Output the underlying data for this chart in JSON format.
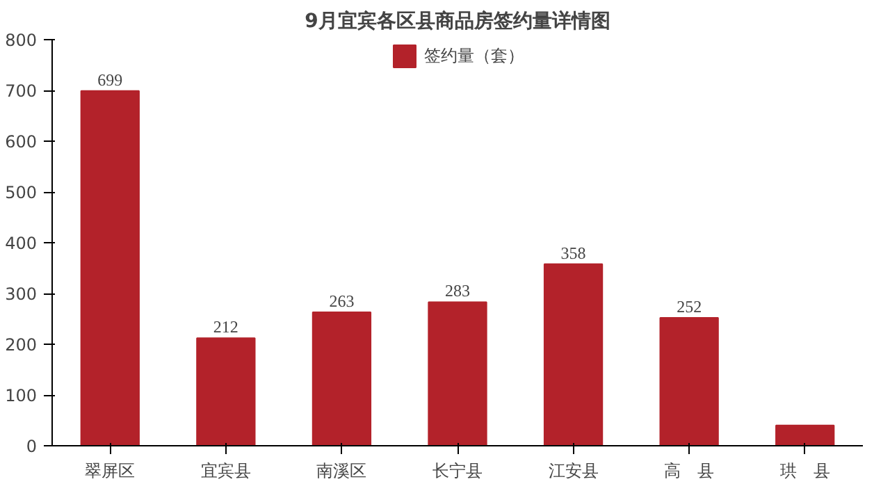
{
  "chart_data": {
    "type": "bar",
    "title": "9月宜宾各区县商品房签约量详情图",
    "categories": [
      "翠屏区",
      "宜宾县",
      "南溪区",
      "长宁县",
      "江安县",
      "高　县",
      "珙　县"
    ],
    "series": [
      {
        "name": "签约量（套）",
        "color": "#b3222a",
        "values": [
          699,
          212,
          263,
          283,
          358,
          252,
          40
        ],
        "value_labels": [
          "699",
          "212",
          "263",
          "283",
          "358",
          "252",
          null
        ]
      }
    ],
    "ylim": [
      0,
      800
    ],
    "yticks": [
      0,
      100,
      200,
      300,
      400,
      500,
      600,
      700,
      800
    ],
    "grid": false,
    "legend": "top"
  }
}
